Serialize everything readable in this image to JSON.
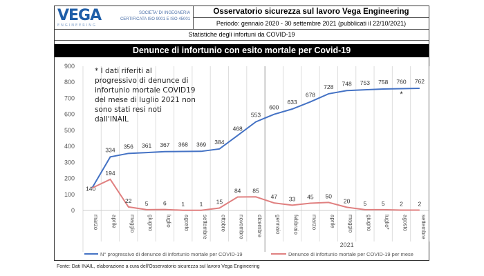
{
  "header": {
    "logo_text": "VEGA",
    "logo_sub": "ENGINEERING",
    "company_line1": "SOCIETA' DI INGEGNERIA",
    "company_line2": "CERTIFICATA ISO 9001 E ISO 45001",
    "title": "Osservatorio sicurezza sul lavoro Vega Engineering",
    "period": "Periodo: gennaio 2020 - 30 settembre 2021 (pubblicati il 22/10/2021)",
    "subtitle": "Statistiche degli infortuni da COVID-19"
  },
  "footer": "Fonte: Dati INAIL, elaborazione a cura dell'Osservatorio sicurezza sul lavoro Vega Engineering",
  "chart_data": {
    "type": "line",
    "title": "Denunce di infortunio con esito mortale per Covid-19",
    "categories": [
      "marzo",
      "aprile",
      "maggio",
      "giugno",
      "luglio",
      "agosto",
      "settembre",
      "ottobre",
      "novembre",
      "dicembre",
      "gennaio",
      "febbraio",
      "marzo",
      "aprile",
      "maggio",
      "giugno",
      "luglio*",
      "agosto",
      "settembre"
    ],
    "year_group": "2021",
    "ylim": [
      0,
      900
    ],
    "yticks": [
      0,
      100,
      200,
      300,
      400,
      500,
      600,
      700,
      800,
      900
    ],
    "grid": "vertical",
    "legend": "bottom",
    "annotation": "* I dati riferiti al progressivo di denunce di infortunio mortale COVID19 del mese di luglio 2021 non sono stati resi noti dall'INAIL",
    "marker_note": "*",
    "series": [
      {
        "name": "N° progressivo di denunce di infortunio mortale per COVID-19",
        "color": "#4472c4",
        "values": [
          140,
          334,
          356,
          361,
          367,
          368,
          369,
          384,
          468,
          553,
          600,
          633,
          678,
          728,
          748,
          753,
          758,
          760,
          762
        ]
      },
      {
        "name": "Denunce di infortunio mortale per COVID-19 per mese",
        "color": "#e08080",
        "values": [
          140,
          194,
          22,
          5,
          6,
          1,
          1,
          15,
          84,
          85,
          47,
          33,
          45,
          50,
          20,
          5,
          5,
          2,
          2
        ]
      }
    ]
  }
}
